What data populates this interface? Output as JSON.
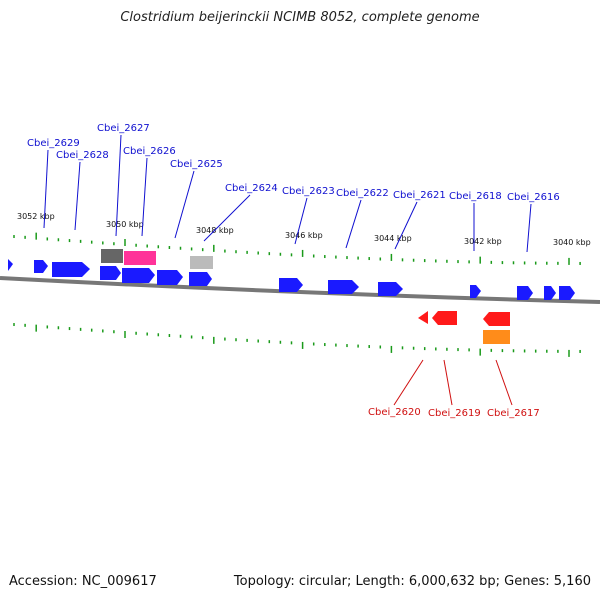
{
  "title": "Clostridium beijerinckii NCIMB 8052, complete genome",
  "footer": {
    "accession": "Accession: NC_009617",
    "summary": "Topology: circular; Length: 6,000,632 bp; Genes: 5,160"
  },
  "colors": {
    "forward_gene": "#1a1aff",
    "reverse_gene": "#ff1a1a",
    "backbone": "#777777",
    "ticks": "#1a9a1a",
    "label_forward": "#1010d0",
    "label_reverse": "#d01010",
    "pseudo_dark": "#666666",
    "pseudo_light": "#bbbbbb",
    "rna_pink": "#ff3399",
    "rna_orange": "#ff8c1a"
  },
  "scale_labels": [
    "3052 kbp",
    "3050 kbp",
    "3048 kbp",
    "3046 kbp",
    "3044 kbp",
    "3042 kbp",
    "3040 kbp"
  ],
  "forward_labels": [
    "Cbei_2629",
    "Cbei_2628",
    "Cbei_2627",
    "Cbei_2626",
    "Cbei_2625",
    "Cbei_2624",
    "Cbei_2623",
    "Cbei_2622",
    "Cbei_2621",
    "Cbei_2618",
    "Cbei_2616"
  ],
  "reverse_labels": [
    "Cbei_2620",
    "Cbei_2619",
    "Cbei_2617"
  ]
}
